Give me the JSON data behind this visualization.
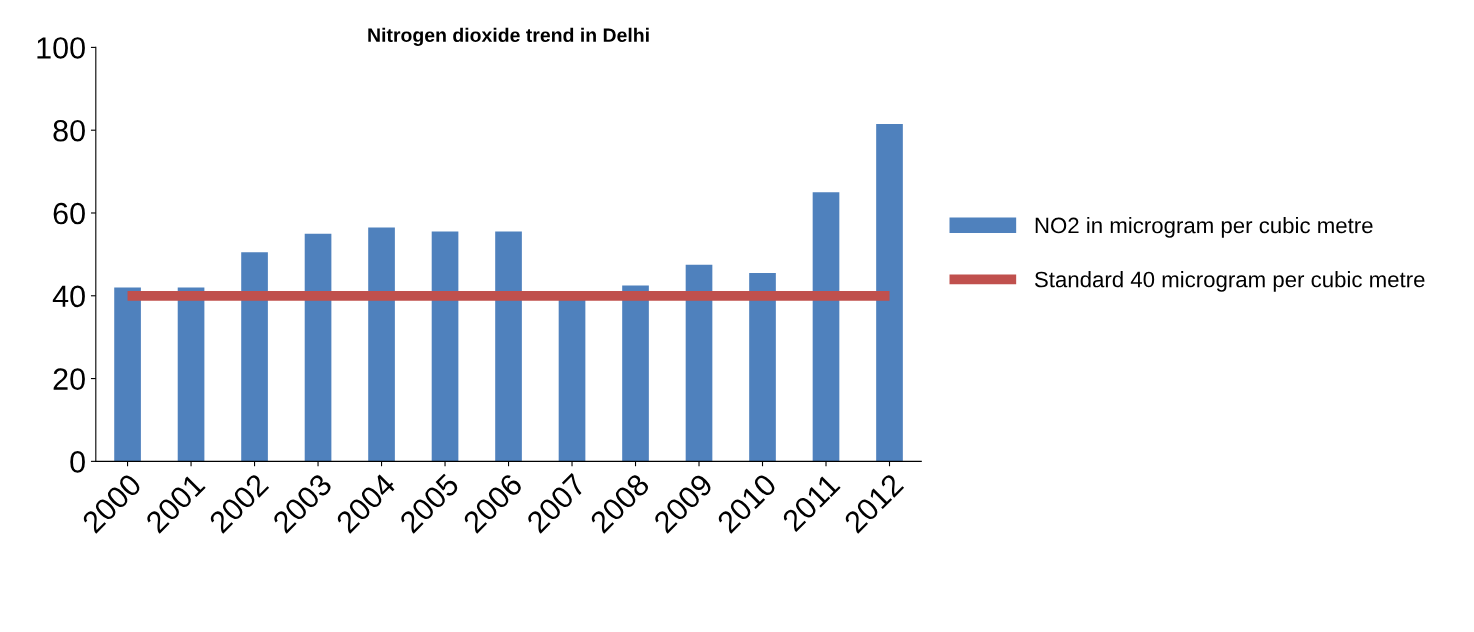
{
  "chart_data": {
    "type": "bar",
    "title": "Nitrogen dioxide trend in Delhi",
    "categories": [
      "2000",
      "2001",
      "2002",
      "2003",
      "2004",
      "2005",
      "2006",
      "2007",
      "2008",
      "2009",
      "2010",
      "2011",
      "2012"
    ],
    "series": [
      {
        "name": "NO2 in microgram per cubic metre",
        "color": "#4f81bd",
        "values": [
          42,
          42,
          50.5,
          55,
          56.5,
          55.5,
          55.5,
          39,
          42.5,
          47.5,
          45.5,
          65,
          81.5
        ]
      },
      {
        "name": "Standard 40 microgram per cubic metre",
        "type": "line",
        "color": "#c0504d",
        "values": [
          40,
          40,
          40,
          40,
          40,
          40,
          40,
          40,
          40,
          40,
          40,
          40,
          40
        ]
      }
    ],
    "ylim": [
      0,
      100
    ],
    "yticks": [
      0,
      20,
      40,
      60,
      80,
      100
    ],
    "grid": false,
    "legend": "right"
  }
}
